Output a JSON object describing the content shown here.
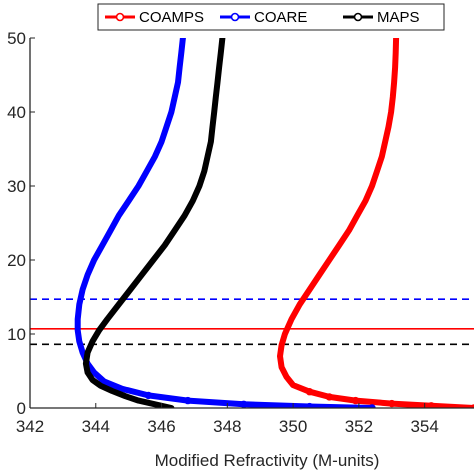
{
  "chart_data": {
    "type": "line",
    "title": "",
    "xlabel": "Modified Refractivity (M-units)",
    "ylabel": "",
    "xlim": [
      342,
      355.5
    ],
    "ylim": [
      0,
      50
    ],
    "x_ticks": [
      342,
      344,
      346,
      348,
      350,
      352,
      354
    ],
    "x_tick_labels": [
      "342",
      "344",
      "346",
      "348",
      "350",
      "352",
      "354"
    ],
    "y_ticks": [
      0,
      10,
      20,
      30,
      40,
      50
    ],
    "y_tick_labels": [
      "0",
      "10",
      "20",
      "30",
      "40",
      "50"
    ],
    "grid": false,
    "legend": {
      "placement": "top",
      "orientation": "horizontal"
    },
    "series": [
      {
        "name": "COAMPS",
        "color": "#ff0000",
        "marker": "circle",
        "points": [
          [
            355.5,
            0
          ],
          [
            354.2,
            0.3
          ],
          [
            353.0,
            0.6
          ],
          [
            351.9,
            1.0
          ],
          [
            351.1,
            1.5
          ],
          [
            350.5,
            2.2
          ],
          [
            350.0,
            3.1
          ],
          [
            349.8,
            4.2
          ],
          [
            349.65,
            5.5
          ],
          [
            349.6,
            7.0
          ],
          [
            349.65,
            8.5
          ],
          [
            349.75,
            10.0
          ],
          [
            349.95,
            12.0
          ],
          [
            350.2,
            14.0
          ],
          [
            350.5,
            16.0
          ],
          [
            350.8,
            18.0
          ],
          [
            351.1,
            20.0
          ],
          [
            351.4,
            22.0
          ],
          [
            351.7,
            24.0
          ],
          [
            351.95,
            26.0
          ],
          [
            352.2,
            28.0
          ],
          [
            352.4,
            30.0
          ],
          [
            352.55,
            32.0
          ],
          [
            352.7,
            34.0
          ],
          [
            352.8,
            36.0
          ],
          [
            352.9,
            38.0
          ],
          [
            352.98,
            40.0
          ],
          [
            353.03,
            42.0
          ],
          [
            353.07,
            44.0
          ],
          [
            353.1,
            46.0
          ],
          [
            353.12,
            48.0
          ],
          [
            353.13,
            50.0
          ]
        ]
      },
      {
        "name": "COARE",
        "color": "#0000ff",
        "marker": "circle",
        "points": [
          [
            352.4,
            0
          ],
          [
            350.5,
            0.2
          ],
          [
            348.5,
            0.5
          ],
          [
            346.8,
            1.0
          ],
          [
            345.6,
            1.7
          ],
          [
            344.8,
            2.6
          ],
          [
            344.25,
            3.6
          ],
          [
            343.95,
            4.8
          ],
          [
            343.75,
            6.0
          ],
          [
            343.6,
            7.5
          ],
          [
            343.5,
            9.0
          ],
          [
            343.45,
            10.5
          ],
          [
            343.45,
            12.0
          ],
          [
            343.5,
            14.0
          ],
          [
            343.6,
            16.0
          ],
          [
            343.75,
            18.0
          ],
          [
            343.95,
            20.0
          ],
          [
            344.2,
            22.0
          ],
          [
            344.45,
            24.0
          ],
          [
            344.7,
            26.0
          ],
          [
            345.0,
            28.0
          ],
          [
            345.3,
            30.0
          ],
          [
            345.55,
            32.0
          ],
          [
            345.8,
            34.0
          ],
          [
            346.0,
            36.0
          ],
          [
            346.15,
            38.0
          ],
          [
            346.3,
            40.0
          ],
          [
            346.4,
            42.0
          ],
          [
            346.5,
            44.0
          ],
          [
            346.55,
            46.0
          ],
          [
            346.6,
            48.0
          ],
          [
            346.65,
            50.0
          ]
        ]
      },
      {
        "name": "MAPS",
        "color": "#000000",
        "marker": "none",
        "points": [
          [
            346.3,
            0
          ],
          [
            345.8,
            0.5
          ],
          [
            345.3,
            1.0
          ],
          [
            344.9,
            1.6
          ],
          [
            344.5,
            2.3
          ],
          [
            344.15,
            3.0
          ],
          [
            343.9,
            3.8
          ],
          [
            343.75,
            4.8
          ],
          [
            343.7,
            6.0
          ],
          [
            343.75,
            7.5
          ],
          [
            343.9,
            9.0
          ],
          [
            344.1,
            10.5
          ],
          [
            344.35,
            12.0
          ],
          [
            344.7,
            14.0
          ],
          [
            345.05,
            16.0
          ],
          [
            345.4,
            18.0
          ],
          [
            345.75,
            20.0
          ],
          [
            346.1,
            22.0
          ],
          [
            346.4,
            24.0
          ],
          [
            346.7,
            26.0
          ],
          [
            346.95,
            28.0
          ],
          [
            347.15,
            30.0
          ],
          [
            347.3,
            32.0
          ],
          [
            347.4,
            34.0
          ],
          [
            347.5,
            36.0
          ],
          [
            347.55,
            38.0
          ],
          [
            347.6,
            40.0
          ],
          [
            347.65,
            42.0
          ],
          [
            347.7,
            44.0
          ],
          [
            347.75,
            46.0
          ],
          [
            347.8,
            48.0
          ],
          [
            347.85,
            50.0
          ]
        ]
      }
    ],
    "reference_lines": [
      {
        "y": 14.7,
        "style": "dashed",
        "color": "#0000ff"
      },
      {
        "y": 10.7,
        "style": "solid",
        "color": "#ff0000"
      },
      {
        "y": 8.6,
        "style": "dashed",
        "color": "#000000"
      }
    ]
  }
}
